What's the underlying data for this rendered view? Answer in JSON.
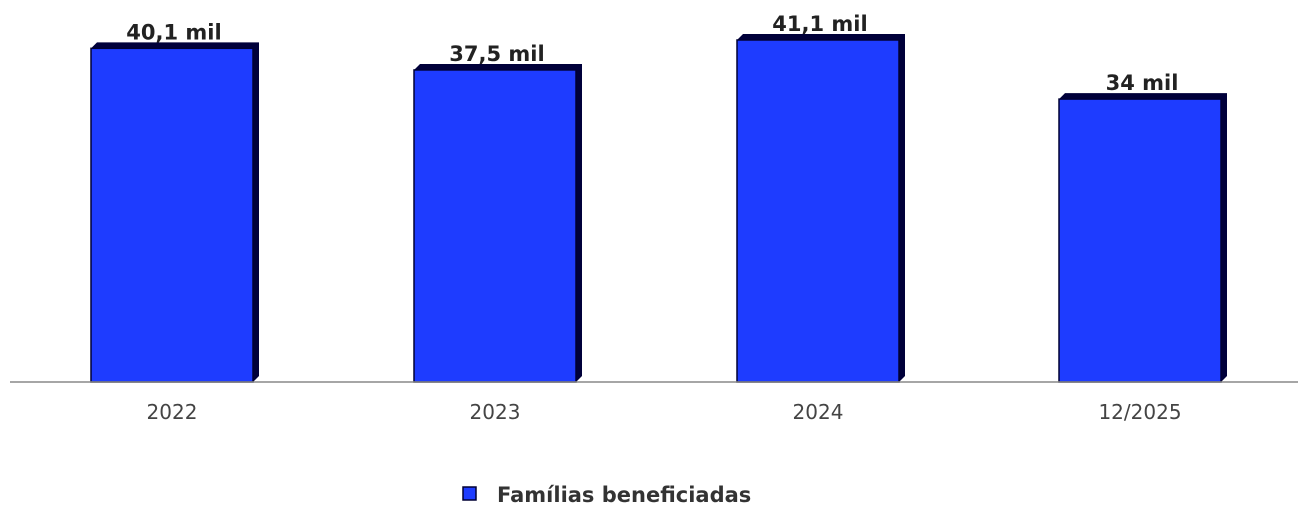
{
  "chart_data": {
    "type": "bar",
    "categories": [
      "2022",
      "2023",
      "2024",
      "12/2025"
    ],
    "values": [
      40.1,
      37.5,
      41.1,
      34
    ],
    "value_labels": [
      "40,1 mil",
      "37,5 mil",
      "41,1 mil",
      "34 mil"
    ],
    "unit": "mil",
    "ylim": [
      0,
      41.1
    ],
    "grid": false,
    "legend": {
      "position": "bottom-center",
      "entries": [
        "Famílias beneficiadas"
      ]
    },
    "series": [
      {
        "name": "Famílias beneficiadas",
        "color": "#1e3cff",
        "values": [
          40.1,
          37.5,
          41.1,
          34
        ]
      }
    ],
    "colors": {
      "bar_fill": "#1e3cff",
      "bar_edge": "#000033",
      "bar_shadow": "#00003a",
      "axis": "#888888"
    }
  }
}
